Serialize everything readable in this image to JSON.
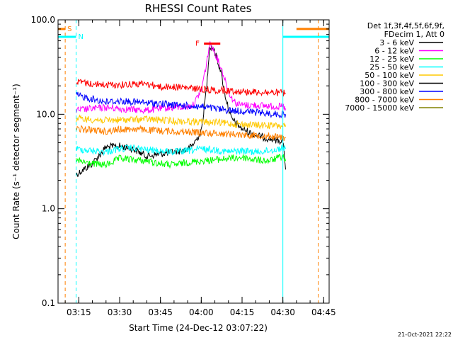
{
  "chart_data": {
    "type": "line",
    "title": "RHESSI Count Rates",
    "xlabel": "Start Time (24-Dec-12 03:07:22)",
    "ylabel": "Count Rate (s⁻¹ detector segment⁻¹)",
    "yscale": "log",
    "xlim": [
      "03:07:22",
      "04:47:00"
    ],
    "ylim": [
      0.1,
      100.0
    ],
    "x_ticks": [
      "03:15",
      "03:30",
      "03:45",
      "04:00",
      "04:15",
      "04:30",
      "04:45"
    ],
    "y_ticks": [
      "0.1",
      "1.0",
      "10.0",
      "100.0"
    ],
    "grid": false,
    "legend_position": "top-right",
    "legend_header": [
      "Det 1f,3f,4f,5f,6f,9f,",
      "FDecim 1, Att 0"
    ],
    "series": [
      {
        "name": "3 - 6 keV",
        "color": "#000000",
        "x": [
          "03:14",
          "03:20",
          "03:25",
          "03:30",
          "03:35",
          "03:40",
          "03:45",
          "03:50",
          "03:55",
          "03:57",
          "04:00",
          "04:02",
          "04:03",
          "04:04",
          "04:05",
          "04:07",
          "04:09",
          "04:11",
          "04:13",
          "04:15",
          "04:20",
          "04:25",
          "04:30",
          "04:31"
        ],
        "y": [
          2.3,
          3.0,
          4.5,
          4.6,
          4.3,
          3.6,
          3.8,
          4.0,
          4.2,
          4.8,
          6.5,
          20,
          50,
          52,
          45,
          30,
          15,
          9,
          8,
          7,
          6,
          5.5,
          5.2,
          2.6
        ]
      },
      {
        "name": "6 - 12 keV",
        "color": "#ff00ff",
        "x": [
          "03:14",
          "03:20",
          "03:25",
          "03:30",
          "03:35",
          "03:40",
          "03:45",
          "03:50",
          "03:55",
          "03:57",
          "04:00",
          "04:02",
          "04:03",
          "04:04",
          "04:05",
          "04:07",
          "04:09",
          "04:11",
          "04:13",
          "04:15",
          "04:20",
          "04:25",
          "04:30",
          "04:31"
        ],
        "y": [
          11.0,
          11.5,
          11.8,
          11.5,
          11.2,
          11.0,
          11.5,
          11.8,
          12.0,
          12.5,
          18,
          35,
          55,
          52,
          45,
          33,
          22,
          15,
          13,
          12.5,
          12.5,
          12.2,
          12.0,
          11.5
        ]
      },
      {
        "name": "12 - 25 keV",
        "color": "#00ff00",
        "x": [
          "03:14",
          "03:20",
          "03:25",
          "03:30",
          "03:35",
          "03:40",
          "03:45",
          "03:50",
          "03:55",
          "04:00",
          "04:05",
          "04:10",
          "04:15",
          "04:20",
          "04:25",
          "04:30",
          "04:31"
        ],
        "y": [
          3.2,
          3.0,
          2.9,
          3.4,
          3.3,
          3.2,
          3.0,
          2.9,
          3.1,
          3.2,
          3.3,
          3.4,
          3.5,
          3.3,
          3.2,
          3.6,
          3.2
        ]
      },
      {
        "name": "25 - 50 keV",
        "color": "#00ffff",
        "x": [
          "03:14",
          "03:20",
          "03:25",
          "03:30",
          "03:35",
          "03:40",
          "03:45",
          "03:50",
          "03:55",
          "04:00",
          "04:05",
          "04:10",
          "04:15",
          "04:20",
          "04:25",
          "04:30",
          "04:31"
        ],
        "y": [
          4.3,
          4.1,
          4.0,
          4.3,
          4.4,
          4.2,
          4.1,
          4.0,
          4.1,
          4.3,
          4.2,
          4.0,
          4.1,
          4.0,
          4.1,
          4.4,
          4.3
        ]
      },
      {
        "name": "50 - 100 keV",
        "color": "#ffc800",
        "x": [
          "03:14",
          "03:20",
          "03:25",
          "03:30",
          "03:35",
          "03:40",
          "03:45",
          "03:50",
          "03:55",
          "04:00",
          "04:05",
          "04:10",
          "04:15",
          "04:20",
          "04:25",
          "04:30",
          "04:31"
        ],
        "y": [
          9.0,
          8.8,
          8.6,
          8.7,
          8.8,
          8.9,
          8.7,
          8.5,
          8.4,
          8.3,
          8.2,
          8.0,
          7.8,
          7.7,
          7.6,
          7.5,
          7.4
        ]
      },
      {
        "name": "100 - 300 keV",
        "color": "#000000",
        "x": [],
        "y": []
      },
      {
        "name": "300 - 800 keV",
        "color": "#0000ff",
        "x": [
          "03:14",
          "03:20",
          "03:25",
          "03:30",
          "03:35",
          "03:40",
          "03:45",
          "03:50",
          "03:55",
          "04:00",
          "04:05",
          "04:10",
          "04:15",
          "04:20",
          "04:25",
          "04:30",
          "04:31"
        ],
        "y": [
          16.0,
          14.5,
          13.5,
          13.8,
          13.5,
          13.2,
          13.0,
          12.5,
          12.3,
          12.0,
          11.5,
          11.0,
          10.8,
          10.5,
          10.2,
          10.0,
          10.0
        ]
      },
      {
        "name": "800 - 7000 keV",
        "color": "#ff8000",
        "x": [
          "03:14",
          "03:20",
          "03:25",
          "03:30",
          "03:35",
          "03:40",
          "03:45",
          "03:50",
          "03:55",
          "04:00",
          "04:05",
          "04:10",
          "04:15",
          "04:20",
          "04:25",
          "04:30",
          "04:31"
        ],
        "y": [
          7.0,
          6.8,
          6.6,
          6.9,
          7.0,
          6.8,
          6.7,
          6.6,
          6.5,
          6.4,
          6.3,
          6.2,
          6.1,
          6.0,
          5.9,
          5.7,
          5.6
        ]
      },
      {
        "name": "7000 - 15000 keV",
        "color": "#808000",
        "x": [],
        "y": []
      },
      {
        "name": "",
        "color": "#ff0000",
        "x": [
          "03:14",
          "03:20",
          "03:25",
          "03:30",
          "03:35",
          "03:40",
          "03:45",
          "03:50",
          "03:55",
          "04:00",
          "04:05",
          "04:10",
          "04:15",
          "04:20",
          "04:25",
          "04:30",
          "04:31"
        ],
        "y": [
          22,
          21,
          20.5,
          20.5,
          21,
          21,
          19.5,
          19.5,
          19,
          18.5,
          18,
          17.8,
          17.5,
          17.2,
          17,
          16.8,
          16.5
        ]
      }
    ],
    "annotations": [
      {
        "label": "S",
        "color": "#ff8000",
        "bar_y": 80,
        "bar_x": [
          "03:07:22",
          "03:10"
        ],
        "line_x": "03:10",
        "line_style": "dashed"
      },
      {
        "label": "N",
        "color": "#00ffff",
        "bar_y": 66,
        "bar_x": [
          "03:07:22",
          "03:14"
        ],
        "line_x": "03:14",
        "line_style": "dashed"
      },
      {
        "label": "F",
        "color": "#ff0000",
        "bar_y": 56,
        "bar_x": [
          "04:01",
          "04:07"
        ]
      },
      {
        "label": "",
        "color": "#00ffff",
        "bar_y": 66,
        "bar_x": [
          "04:30",
          "04:47"
        ],
        "line_x": "04:30",
        "line_style": "solid"
      },
      {
        "label": "",
        "color": "#ff8000",
        "bar_y": 80,
        "bar_x": [
          "04:35",
          "04:47"
        ],
        "line_x": "04:43",
        "line_style": "dashed"
      }
    ]
  },
  "footer_date": "21-Oct-2021 22:22"
}
